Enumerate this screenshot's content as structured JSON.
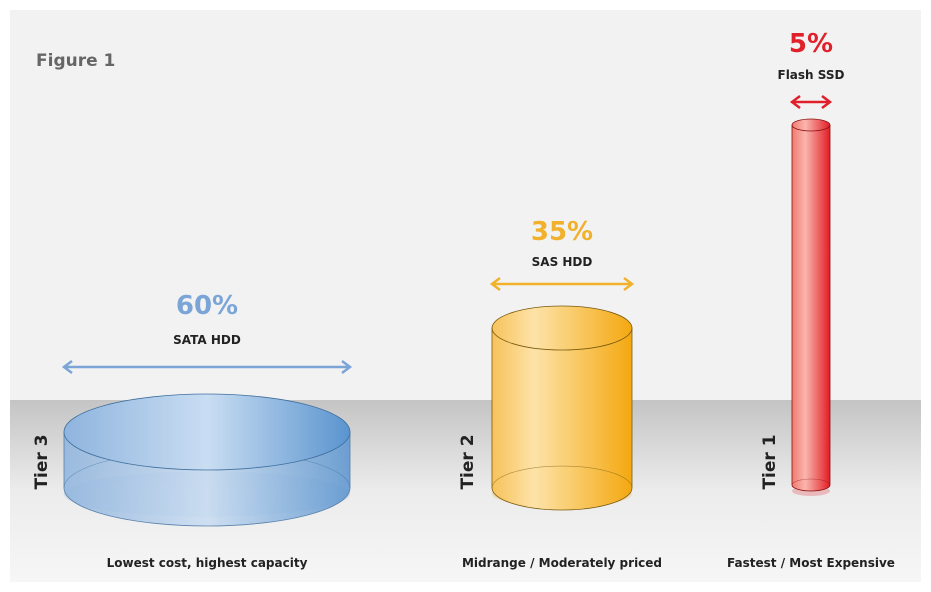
{
  "title": "Figure 1",
  "tiers": [
    {
      "tier": "Tier 3",
      "share": "60%",
      "media": "SATA HDD",
      "description": "Lowest cost, highest capacity"
    },
    {
      "tier": "Tier 2",
      "share": "35%",
      "media": "SAS HDD",
      "description": "Midrange / Moderately priced"
    },
    {
      "tier": "Tier 1",
      "share": "5%",
      "media": "Flash SSD",
      "description": "Fastest / Most Expensive"
    }
  ]
}
